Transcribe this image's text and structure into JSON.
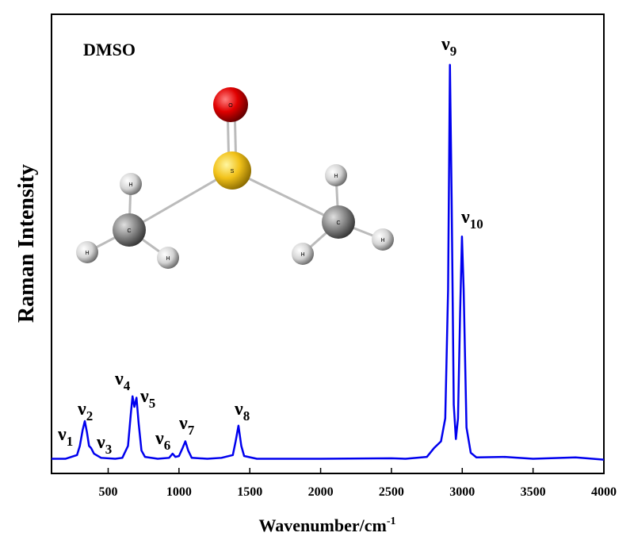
{
  "chart_data": {
    "type": "line",
    "x_label": "Wavenumber/cm",
    "x_label_sup": "-1",
    "y_label": "Raman Intensity",
    "inset_label": "DMSO",
    "molecule_atoms": [
      "O",
      "S",
      "C",
      "C",
      "H",
      "H",
      "H",
      "H",
      "H",
      "H"
    ],
    "xlim": [
      100,
      4000
    ],
    "ylim": [
      0,
      100
    ],
    "xticks": [
      500,
      1000,
      1500,
      2000,
      2500,
      3000,
      3500,
      4000
    ],
    "x": [
      100,
      200,
      280,
      300,
      320,
      335,
      350,
      365,
      380,
      400,
      450,
      550,
      600,
      640,
      660,
      672,
      685,
      700,
      715,
      735,
      760,
      850,
      930,
      955,
      975,
      1000,
      1025,
      1045,
      1065,
      1090,
      1200,
      1300,
      1380,
      1400,
      1420,
      1440,
      1460,
      1550,
      2000,
      2500,
      2600,
      2750,
      2800,
      2850,
      2880,
      2900,
      2913,
      2925,
      2940,
      2955,
      2970,
      2985,
      2998,
      3010,
      3030,
      3060,
      3100,
      3300,
      3500,
      3800,
      4000
    ],
    "series": [
      {
        "color": "#0000ee",
        "values": [
          3.2,
          3.2,
          4,
          6,
          9.5,
          11.4,
          9,
          6,
          5.5,
          4.3,
          3.4,
          3.2,
          3.4,
          6,
          13,
          16.8,
          14.5,
          16.5,
          11,
          5,
          3.6,
          3.2,
          3.4,
          4.3,
          3.6,
          3.8,
          5.5,
          7,
          5,
          3.4,
          3.2,
          3.4,
          4,
          7,
          10.4,
          6,
          3.8,
          3.2,
          3.2,
          3.3,
          3.2,
          3.6,
          5.5,
          7,
          12,
          40,
          89,
          60,
          15,
          7.5,
          12,
          35,
          51.6,
          40,
          10,
          4.5,
          3.5,
          3.6,
          3.2,
          3.5,
          3
        ]
      }
    ],
    "annotations": [
      {
        "text": "ν",
        "sub": "1"
      },
      {
        "text": "ν",
        "sub": "2"
      },
      {
        "text": "ν",
        "sub": "3"
      },
      {
        "text": "ν",
        "sub": "4"
      },
      {
        "text": "ν",
        "sub": "5"
      },
      {
        "text": "ν",
        "sub": "6"
      },
      {
        "text": "ν",
        "sub": "7"
      },
      {
        "text": "ν",
        "sub": "8"
      },
      {
        "text": "ν",
        "sub": "9"
      },
      {
        "text": "ν",
        "sub": "10"
      }
    ]
  }
}
